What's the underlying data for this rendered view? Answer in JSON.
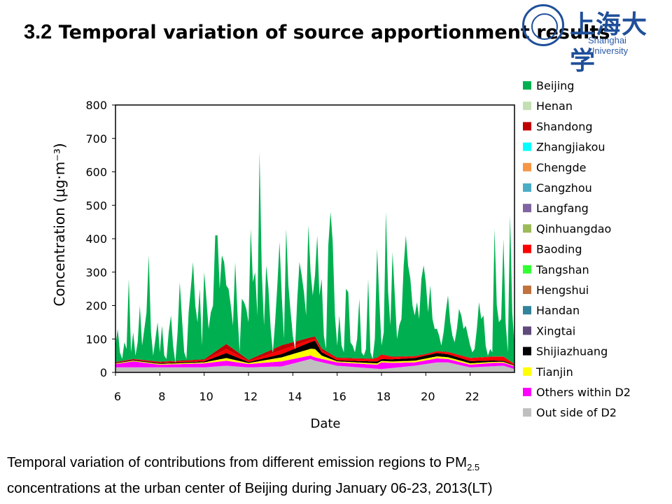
{
  "slide": {
    "title_num": "3.2",
    "title_text": "Temporal variation of source apportionment results",
    "logo_cn": "上海大学",
    "logo_en": "Shanghai University",
    "caption_line1": "Temporal variation of contributions from different emission regions to PM",
    "caption_sub": "2.5",
    "caption_line2": "concentrations at the urban center of Beijing during January 06-23, 2013(LT)"
  },
  "chart_data": {
    "type": "area",
    "stacked": true,
    "title": "",
    "xlabel": "Date",
    "ylabel": "Concentration (μg·m⁻³)",
    "xlim": [
      6,
      24
    ],
    "ylim": [
      0,
      800
    ],
    "x_ticks": [
      6,
      8,
      10,
      12,
      14,
      16,
      18,
      20,
      22
    ],
    "y_ticks": [
      0,
      100,
      200,
      300,
      400,
      500,
      600,
      700,
      800
    ],
    "grid": false,
    "legend_position": "right",
    "legend": [
      {
        "name": "Beijing",
        "color": "#00b050"
      },
      {
        "name": "Henan",
        "color": "#c4dfb2"
      },
      {
        "name": "Shandong",
        "color": "#c00000"
      },
      {
        "name": "Zhangjiakou",
        "color": "#00ffff"
      },
      {
        "name": "Chengde",
        "color": "#f79646"
      },
      {
        "name": "Cangzhou",
        "color": "#4bacc6"
      },
      {
        "name": "Langfang",
        "color": "#8064a2"
      },
      {
        "name": "Qinhuangdao",
        "color": "#9bbb59"
      },
      {
        "name": "Baoding",
        "color": "#ff0000"
      },
      {
        "name": "Tangshan",
        "color": "#33ff33"
      },
      {
        "name": "Hengshui",
        "color": "#c0723f"
      },
      {
        "name": "Handan",
        "color": "#31849b"
      },
      {
        "name": "Xingtai",
        "color": "#604a7b"
      },
      {
        "name": "Shijiazhuang",
        "color": "#000000"
      },
      {
        "name": "Tianjin",
        "color": "#ffff00"
      },
      {
        "name": "Others within D2",
        "color": "#ff00ff"
      },
      {
        "name": "Out side of D2",
        "color": "#bfbfbf"
      }
    ],
    "total_profile": {
      "x": [
        6.0,
        6.1,
        6.2,
        6.3,
        6.4,
        6.5,
        6.6,
        6.7,
        6.8,
        6.9,
        7.0,
        7.1,
        7.2,
        7.4,
        7.5,
        7.6,
        7.7,
        7.9,
        8.0,
        8.1,
        8.2,
        8.3,
        8.4,
        8.5,
        8.6,
        8.7,
        8.8,
        8.9,
        9.0,
        9.1,
        9.2,
        9.3,
        9.5,
        9.6,
        9.7,
        9.8,
        9.9,
        10.0,
        10.1,
        10.2,
        10.3,
        10.4,
        10.5,
        10.6,
        10.7,
        10.8,
        10.9,
        11.0,
        11.1,
        11.2,
        11.3,
        11.4,
        11.5,
        11.6,
        11.7,
        11.8,
        11.9,
        12.0,
        12.1,
        12.2,
        12.3,
        12.4,
        12.5,
        12.6,
        12.7,
        12.8,
        12.9,
        13.0,
        13.1,
        13.2,
        13.3,
        13.4,
        13.5,
        13.6,
        13.7,
        13.8,
        13.9,
        14.0,
        14.1,
        14.2,
        14.3,
        14.4,
        14.5,
        14.6,
        14.7,
        14.8,
        14.9,
        15.0,
        15.1,
        15.2,
        15.3,
        15.4,
        15.5,
        15.6,
        15.7,
        15.8,
        15.9,
        16.0,
        16.1,
        16.2,
        16.3,
        16.4,
        16.5,
        16.6,
        16.7,
        16.8,
        16.9,
        17.0,
        17.1,
        17.2,
        17.3,
        17.4,
        17.5,
        17.6,
        17.7,
        17.8,
        17.9,
        18.0,
        18.1,
        18.2,
        18.3,
        18.4,
        18.5,
        18.6,
        18.7,
        18.8,
        18.9,
        19.0,
        19.1,
        19.2,
        19.3,
        19.4,
        19.5,
        19.6,
        19.7,
        19.8,
        19.9,
        20.0,
        20.1,
        20.2,
        20.3,
        20.4,
        20.5,
        20.6,
        20.7,
        20.8,
        20.9,
        21.0,
        21.1,
        21.2,
        21.3,
        21.4,
        21.5,
        21.6,
        21.7,
        21.8,
        21.9,
        22.0,
        22.1,
        22.2,
        22.3,
        22.4,
        22.5,
        22.6,
        22.7,
        22.8,
        22.9,
        23.0,
        23.1,
        23.2,
        23.3,
        23.4,
        23.5,
        23.6,
        23.7,
        23.8,
        23.9,
        24.0
      ],
      "y": [
        80,
        130,
        60,
        40,
        90,
        70,
        280,
        60,
        120,
        50,
        90,
        200,
        80,
        180,
        350,
        120,
        50,
        150,
        60,
        140,
        50,
        40,
        120,
        170,
        80,
        30,
        120,
        270,
        160,
        60,
        40,
        180,
        330,
        200,
        150,
        250,
        80,
        300,
        220,
        130,
        180,
        200,
        410,
        410,
        250,
        350,
        330,
        260,
        250,
        200,
        140,
        330,
        180,
        60,
        220,
        210,
        190,
        150,
        430,
        270,
        300,
        170,
        660,
        300,
        140,
        320,
        250,
        130,
        60,
        150,
        260,
        390,
        230,
        100,
        430,
        260,
        180,
        110,
        70,
        220,
        330,
        290,
        240,
        170,
        440,
        300,
        230,
        290,
        410,
        230,
        280,
        110,
        70,
        380,
        480,
        390,
        170,
        80,
        170,
        80,
        60,
        250,
        240,
        90,
        80,
        60,
        100,
        220,
        60,
        50,
        70,
        280,
        60,
        40,
        100,
        370,
        220,
        80,
        120,
        480,
        240,
        140,
        360,
        230,
        100,
        140,
        160,
        320,
        410,
        320,
        280,
        200,
        170,
        210,
        160,
        280,
        320,
        270,
        180,
        260,
        160,
        130,
        130,
        110,
        80,
        120,
        180,
        230,
        150,
        110,
        90,
        130,
        190,
        170,
        130,
        140,
        110,
        80,
        60,
        70,
        130,
        210,
        160,
        170,
        80,
        50,
        70,
        60,
        430,
        200,
        150,
        160,
        400,
        150,
        60,
        470,
        180,
        80
      ]
    },
    "component_profiles": [
      {
        "name": "Out side of D2",
        "x": [
          6.0,
          8.0,
          10.0,
          11.0,
          12.0,
          13.5,
          14.8,
          15.0,
          16.0,
          18.0,
          19.5,
          20.5,
          21.0,
          22.0,
          23.5,
          24.0
        ],
        "y": [
          15,
          15,
          15,
          20,
          15,
          18,
          40,
          35,
          20,
          10,
          20,
          30,
          30,
          15,
          20,
          10
        ]
      },
      {
        "name": "Others within D2",
        "x": [
          6.0,
          6.8,
          8.0,
          10.0,
          11.0,
          12.0,
          13.5,
          15.0,
          16.0,
          17.8,
          18.0,
          18.5,
          19.5,
          20.5,
          21.0,
          22.0,
          23.0,
          24.0
        ],
        "y": [
          10,
          18,
          8,
          12,
          15,
          10,
          15,
          10,
          10,
          12,
          20,
          15,
          10,
          12,
          10,
          8,
          10,
          8
        ]
      },
      {
        "name": "Tianjin",
        "x": [
          6.0,
          10.0,
          11.0,
          12.0,
          14.8,
          15.0,
          15.3,
          16.0,
          19.5,
          20.5,
          24.0
        ],
        "y": [
          2,
          3,
          8,
          3,
          20,
          25,
          10,
          3,
          5,
          6,
          2
        ]
      },
      {
        "name": "Shijiazhuang",
        "x": [
          6.0,
          10.0,
          11.0,
          12.0,
          13.5,
          14.8,
          15.0,
          15.3,
          16.0,
          19.5,
          20.5,
          24.0
        ],
        "y": [
          2,
          3,
          15,
          3,
          10,
          20,
          25,
          10,
          3,
          8,
          10,
          2
        ]
      },
      {
        "name": "Baoding",
        "x": [
          6.0,
          10.0,
          11.0,
          12.0,
          13.5,
          15.0,
          17.5,
          18.0,
          18.5,
          20.0,
          23.5,
          24.0
        ],
        "y": [
          1,
          3,
          12,
          3,
          12,
          6,
          6,
          12,
          6,
          3,
          12,
          2
        ]
      },
      {
        "name": "Shandong",
        "x": [
          6.0,
          10.0,
          11.0,
          12.0,
          13.5,
          15.0,
          16.0,
          24.0
        ],
        "y": [
          1,
          3,
          15,
          3,
          14,
          6,
          2,
          1
        ]
      }
    ],
    "units_note": "Profiles read approximately from the figure"
  }
}
